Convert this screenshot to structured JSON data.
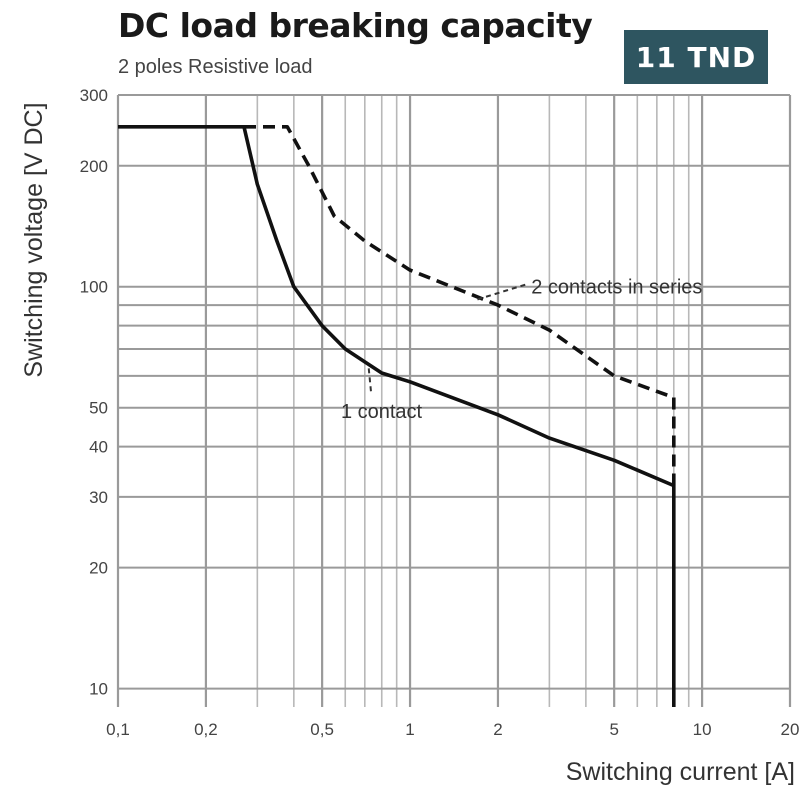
{
  "header": {
    "title": "DC load breaking capacity",
    "subtitle": "2 poles Resistive load",
    "badge": "11 TND",
    "badge_color": "#2e5560"
  },
  "chart_data": {
    "type": "line",
    "title": "DC load breaking capacity",
    "subtitle": "2 poles Resistive load",
    "xlabel": "Switching current [A]",
    "ylabel": "Switching voltage [V DC]",
    "x_scale": "log",
    "y_scale": "log",
    "xlim": [
      0.1,
      20
    ],
    "ylim": [
      9,
      300
    ],
    "x_tick_labels": [
      {
        "value": 0.1,
        "label": "0,1"
      },
      {
        "value": 0.2,
        "label": "0,2"
      },
      {
        "value": 0.5,
        "label": "0,5"
      },
      {
        "value": 1,
        "label": "1"
      },
      {
        "value": 2,
        "label": "2"
      },
      {
        "value": 5,
        "label": "5"
      },
      {
        "value": 10,
        "label": "10"
      },
      {
        "value": 20,
        "label": "20"
      }
    ],
    "y_tick_labels": [
      {
        "value": 10,
        "label": "10"
      },
      {
        "value": 20,
        "label": "20"
      },
      {
        "value": 30,
        "label": "30"
      },
      {
        "value": 40,
        "label": "40"
      },
      {
        "value": 50,
        "label": "50"
      },
      {
        "value": 100,
        "label": "100"
      },
      {
        "value": 200,
        "label": "200"
      },
      {
        "value": 300,
        "label": "300"
      }
    ],
    "x_grid": [
      0.1,
      0.2,
      0.3,
      0.4,
      0.5,
      0.6,
      0.7,
      0.8,
      0.9,
      1,
      2,
      3,
      4,
      5,
      6,
      7,
      8,
      9,
      10,
      20
    ],
    "y_grid": [
      10,
      20,
      30,
      40,
      50,
      60,
      70,
      80,
      90,
      100,
      200,
      300
    ],
    "grid": true,
    "series": [
      {
        "name": "1 contact",
        "style": "solid",
        "points": [
          [
            0.1,
            250
          ],
          [
            0.27,
            250
          ],
          [
            0.3,
            180
          ],
          [
            0.35,
            130
          ],
          [
            0.4,
            100
          ],
          [
            0.5,
            80
          ],
          [
            0.6,
            70
          ],
          [
            0.7,
            65
          ],
          [
            0.8,
            61
          ],
          [
            1,
            58
          ],
          [
            2,
            48
          ],
          [
            3,
            42
          ],
          [
            5,
            37
          ],
          [
            8,
            32
          ],
          [
            8,
            9
          ]
        ]
      },
      {
        "name": "2 contacts in series",
        "style": "dashed",
        "points": [
          [
            0.27,
            250
          ],
          [
            0.38,
            250
          ],
          [
            0.45,
            200
          ],
          [
            0.55,
            150
          ],
          [
            0.7,
            130
          ],
          [
            1,
            110
          ],
          [
            2,
            90
          ],
          [
            3,
            78
          ],
          [
            5,
            60
          ],
          [
            8,
            53
          ],
          [
            8,
            32
          ]
        ]
      }
    ],
    "annotations": [
      {
        "text": "2 contacts in series",
        "x": 2.6,
        "y": 100
      },
      {
        "text": "1 contact",
        "x": 0.58,
        "y": 49
      }
    ]
  }
}
